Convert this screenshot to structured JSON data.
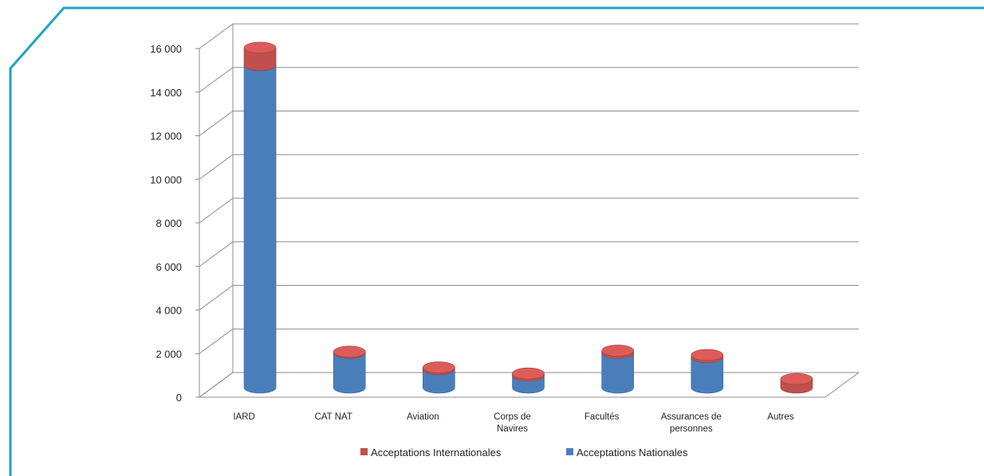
{
  "chart_data": {
    "type": "bar",
    "stacked": true,
    "three_d": true,
    "categories": [
      [
        "IARD"
      ],
      [
        "CAT NAT"
      ],
      [
        "Aviation"
      ],
      [
        "Corps de",
        "Navires"
      ],
      [
        "Facultés"
      ],
      [
        "Assurances de",
        "personnes"
      ],
      [
        "Autres"
      ]
    ],
    "series": [
      {
        "name": "Acceptations Nationales",
        "color": "#4a7ebb",
        "values": [
          14800,
          1600,
          850,
          550,
          1600,
          1400,
          0
        ]
      },
      {
        "name": "Acceptations Internationales",
        "color": "#c0504d",
        "values": [
          800,
          50,
          80,
          100,
          100,
          100,
          400
        ]
      }
    ],
    "y_ticks": [
      "0",
      "2 000",
      "4 000",
      "6 000",
      "8 000",
      "10 000",
      "12 000",
      "14 000",
      "16 000"
    ],
    "ylim": [
      0,
      16000
    ],
    "grid": true,
    "legend_position": "bottom",
    "legend_order": [
      "Acceptations Internationales",
      "Acceptations Nationales"
    ],
    "title": "",
    "xlabel": "",
    "ylabel": ""
  },
  "frame_color": "#1fa2c6"
}
